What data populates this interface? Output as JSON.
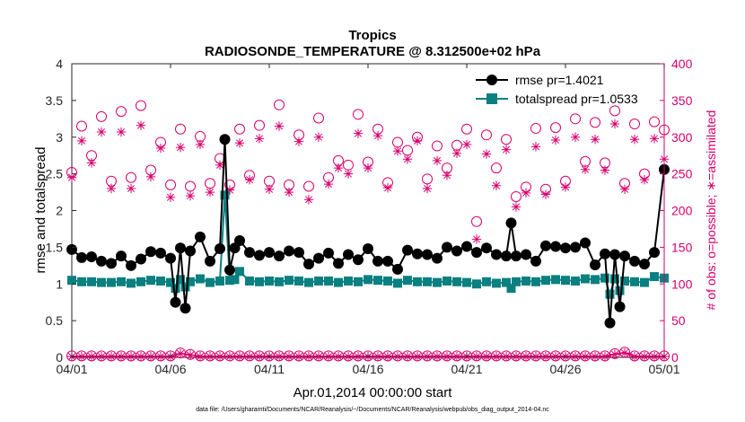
{
  "chart_data": {
    "type": "line",
    "title": "Tropics",
    "subtitle": "RADIOSONDE_TEMPERATURE @ 8.312500e+02 hPa",
    "xlabel": "Apr.01,2014 00:00:00 start",
    "ylabel": "rmse and totalspread",
    "ylabel_right": "# of obs: o=possible; ∗=assimilated",
    "footnote": "data file: /Users/gharamti/Documents/NCAR/Reanalysis/~/Documents/NCAR/Reanalysis/webpub/obs_diag_output_2014-04.nc",
    "x_range": [
      1,
      31
    ],
    "ylim": [
      0,
      4
    ],
    "ylim_right": [
      0,
      400
    ],
    "x_ticks": [
      1,
      6,
      11,
      16,
      21,
      26,
      31
    ],
    "x_tick_labels": [
      "04/01",
      "04/06",
      "04/11",
      "04/16",
      "04/21",
      "04/26",
      "05/01"
    ],
    "y_ticks": [
      "0",
      "0.5",
      "1",
      "1.5",
      "2",
      "2.5",
      "3",
      "3.5",
      "4"
    ],
    "y_ticks_right": [
      "0",
      "50",
      "100",
      "150",
      "200",
      "250",
      "300",
      "350",
      "400"
    ],
    "legend": {
      "placement": "top-right",
      "entries": [
        "rmse pr=1.4021",
        "totalspread pr=1.0533"
      ]
    },
    "colors": {
      "rmse": "#000000",
      "totalspread": "#0a8080",
      "obs": "#d6006e",
      "axis": "#262626"
    },
    "series": [
      {
        "name": "rmse",
        "axis": "left",
        "marker": "filled-circle",
        "x": [
          1.0,
          1.5,
          2.0,
          2.5,
          3.0,
          3.5,
          4.0,
          4.5,
          5.0,
          5.5,
          6.0,
          6.25,
          6.5,
          6.75,
          7.0,
          7.5,
          8.0,
          8.5,
          8.75,
          9.0,
          9.25,
          9.5,
          10.0,
          10.5,
          11.0,
          11.5,
          12.0,
          12.5,
          13.0,
          13.5,
          14.0,
          14.5,
          15.0,
          15.5,
          16.0,
          16.5,
          17.0,
          17.5,
          18.0,
          18.5,
          19.0,
          19.5,
          20.0,
          20.5,
          21.0,
          21.5,
          22.0,
          22.5,
          23.0,
          23.25,
          23.5,
          24.0,
          24.5,
          25.0,
          25.5,
          26.0,
          26.5,
          27.0,
          27.5,
          28.0,
          28.25,
          28.5,
          28.75,
          29.0,
          29.5,
          30.0,
          30.5,
          31.0
        ],
        "values": [
          1.47,
          1.36,
          1.37,
          1.31,
          1.28,
          1.38,
          1.25,
          1.34,
          1.44,
          1.42,
          1.35,
          0.75,
          1.49,
          0.67,
          1.45,
          1.64,
          1.31,
          1.48,
          2.97,
          1.19,
          1.49,
          1.59,
          1.43,
          1.39,
          1.43,
          1.38,
          1.45,
          1.43,
          1.27,
          1.35,
          1.42,
          1.28,
          1.4,
          1.33,
          1.48,
          1.31,
          1.31,
          1.2,
          1.46,
          1.41,
          1.4,
          1.35,
          1.5,
          1.45,
          1.51,
          1.43,
          1.49,
          1.4,
          1.38,
          1.83,
          1.38,
          1.4,
          1.31,
          1.52,
          1.51,
          1.49,
          1.5,
          1.56,
          1.26,
          1.41,
          0.47,
          1.4,
          0.69,
          1.38,
          1.31,
          1.27,
          1.43,
          2.56
        ]
      },
      {
        "name": "totalspread",
        "axis": "left",
        "marker": "filled-square",
        "x": [
          1.0,
          1.5,
          2.0,
          2.5,
          3.0,
          3.5,
          4.0,
          4.5,
          5.0,
          5.5,
          6.0,
          6.25,
          6.5,
          6.75,
          7.0,
          7.5,
          8.0,
          8.5,
          8.75,
          9.0,
          9.25,
          9.5,
          10.0,
          10.5,
          11.0,
          11.5,
          12.0,
          12.5,
          13.0,
          13.5,
          14.0,
          14.5,
          15.0,
          15.5,
          16.0,
          16.5,
          17.0,
          17.5,
          18.0,
          18.5,
          19.0,
          19.5,
          20.0,
          20.5,
          21.0,
          21.5,
          22.0,
          22.5,
          23.0,
          23.25,
          23.5,
          24.0,
          24.5,
          25.0,
          25.5,
          26.0,
          26.5,
          27.0,
          27.5,
          28.0,
          28.25,
          28.5,
          28.75,
          29.0,
          29.5,
          30.0,
          30.5,
          31.0
        ],
        "values": [
          1.05,
          1.03,
          1.03,
          1.02,
          1.02,
          1.03,
          1.01,
          1.03,
          1.05,
          1.04,
          1.02,
          0.94,
          1.06,
          0.96,
          1.03,
          1.07,
          1.02,
          1.04,
          2.21,
          1.05,
          1.06,
          1.17,
          1.04,
          1.03,
          1.04,
          1.03,
          1.05,
          1.04,
          1.02,
          1.04,
          1.04,
          1.02,
          1.04,
          1.03,
          1.06,
          1.05,
          1.04,
          1.01,
          1.05,
          1.03,
          1.03,
          1.02,
          1.04,
          1.03,
          1.02,
          1.0,
          1.03,
          1.01,
          1.02,
          0.94,
          1.03,
          1.04,
          1.03,
          1.05,
          1.06,
          1.05,
          1.04,
          1.07,
          1.06,
          1.08,
          0.86,
          1.07,
          0.91,
          1.04,
          1.03,
          1.02,
          1.1,
          1.08
        ]
      },
      {
        "name": "possible",
        "axis": "right",
        "marker": "open-circle",
        "x": [
          1.0,
          1.5,
          2.0,
          2.5,
          3.0,
          3.5,
          4.0,
          4.5,
          5.0,
          5.5,
          6.0,
          6.5,
          7.0,
          7.5,
          8.0,
          8.5,
          9.0,
          9.5,
          10.0,
          10.5,
          11.0,
          11.5,
          12.0,
          12.5,
          13.0,
          13.5,
          14.0,
          14.5,
          15.0,
          15.5,
          16.0,
          16.5,
          17.0,
          17.5,
          18.0,
          18.5,
          19.0,
          19.5,
          20.0,
          20.5,
          21.0,
          21.5,
          22.0,
          22.5,
          23.0,
          23.5,
          24.0,
          24.5,
          25.0,
          25.5,
          26.0,
          26.5,
          27.0,
          27.5,
          28.0,
          28.5,
          29.0,
          29.5,
          30.0,
          30.5,
          31.0
        ],
        "values": [
          252,
          315,
          275,
          328,
          240,
          335,
          245,
          343,
          255,
          293,
          235,
          311,
          233,
          301,
          237,
          271,
          235,
          311,
          248,
          316,
          240,
          344,
          235,
          303,
          233,
          326,
          245,
          268,
          262,
          331,
          266,
          311,
          238,
          293,
          282,
          300,
          243,
          288,
          258,
          289,
          311,
          185,
          303,
          258,
          297,
          219,
          232,
          312,
          229,
          313,
          240,
          325,
          267,
          320,
          265,
          336,
          237,
          318,
          250,
          321,
          310
        ],
        "low_values": [
          2,
          2,
          2,
          2,
          2,
          2,
          2,
          2,
          2,
          2,
          2,
          6,
          4,
          2,
          2,
          2,
          2,
          2,
          2,
          2,
          2,
          2,
          2,
          2,
          2,
          2,
          2,
          2,
          2,
          2,
          2,
          2,
          2,
          2,
          2,
          2,
          2,
          2,
          2,
          2,
          2,
          2,
          2,
          2,
          2,
          2,
          2,
          2,
          2,
          2,
          2,
          2,
          2,
          2,
          2,
          5,
          7,
          2,
          2,
          2,
          2
        ]
      },
      {
        "name": "assimilated",
        "axis": "right",
        "marker": "asterisk",
        "x": [
          1.0,
          1.5,
          2.0,
          2.5,
          3.0,
          3.5,
          4.0,
          4.5,
          5.0,
          5.5,
          6.0,
          6.5,
          7.0,
          7.5,
          8.0,
          8.5,
          9.0,
          9.5,
          10.0,
          10.5,
          11.0,
          11.5,
          12.0,
          12.5,
          13.0,
          13.5,
          14.0,
          14.5,
          15.0,
          15.5,
          16.0,
          16.5,
          17.0,
          17.5,
          18.0,
          18.5,
          19.0,
          19.5,
          20.0,
          20.5,
          21.0,
          21.5,
          22.0,
          22.5,
          23.0,
          23.5,
          24.0,
          24.5,
          25.0,
          25.5,
          26.0,
          26.5,
          27.0,
          27.5,
          28.0,
          28.5,
          29.0,
          29.5,
          30.0,
          30.5,
          31.0
        ],
        "values": [
          245,
          295,
          265,
          307,
          230,
          307,
          230,
          316,
          246,
          285,
          218,
          286,
          220,
          290,
          225,
          262,
          228,
          292,
          242,
          298,
          229,
          315,
          225,
          294,
          215,
          300,
          236,
          258,
          250,
          305,
          258,
          302,
          231,
          281,
          270,
          295,
          230,
          268,
          248,
          278,
          290,
          161,
          277,
          234,
          283,
          205,
          224,
          287,
          222,
          296,
          232,
          300,
          256,
          297,
          255,
          318,
          229,
          297,
          242,
          298,
          270
        ],
        "low_values": [
          1,
          1,
          1,
          1,
          1,
          1,
          1,
          1,
          1,
          1,
          1,
          5,
          3,
          1,
          1,
          1,
          1,
          1,
          1,
          1,
          1,
          1,
          1,
          1,
          1,
          1,
          1,
          1,
          1,
          1,
          1,
          1,
          1,
          1,
          1,
          1,
          1,
          1,
          1,
          1,
          1,
          1,
          1,
          1,
          1,
          1,
          1,
          1,
          1,
          1,
          1,
          1,
          1,
          1,
          1,
          4,
          6,
          1,
          1,
          1,
          1
        ]
      }
    ]
  }
}
